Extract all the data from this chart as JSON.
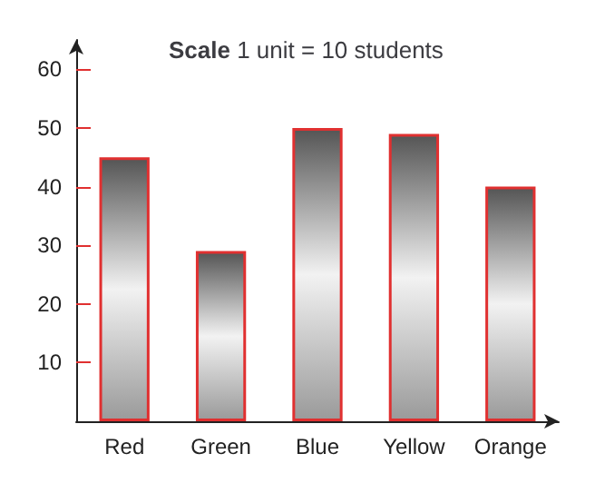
{
  "chart_data": {
    "type": "bar",
    "title": "Scale 1 unit = 10 students",
    "categories": [
      "Red",
      "Green",
      "Blue",
      "Yellow",
      "Orange"
    ],
    "values": [
      45,
      29,
      50,
      49,
      40
    ],
    "color": "#e03030",
    "ylim": [
      0,
      65
    ],
    "yticks": [
      10,
      20,
      30,
      40,
      50,
      60
    ],
    "grid": false
  }
}
